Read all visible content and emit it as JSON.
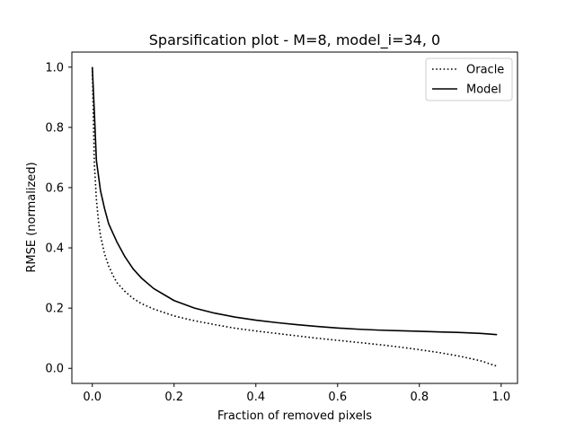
{
  "chart_data": {
    "type": "line",
    "title": "Sparsification plot - M=8, model_i=34, 0",
    "xlabel": "Fraction of removed pixels",
    "ylabel": "RMSE (normalized)",
    "xlim": [
      -0.05,
      1.04
    ],
    "ylim": [
      -0.05,
      1.05
    ],
    "xticks": [
      0.0,
      0.2,
      0.4,
      0.6,
      0.8,
      1.0
    ],
    "yticks": [
      0.0,
      0.2,
      0.4,
      0.6,
      0.8,
      1.0
    ],
    "xtick_labels": [
      "0.0",
      "0.2",
      "0.4",
      "0.6",
      "0.8",
      "1.0"
    ],
    "ytick_labels": [
      "0.0",
      "0.2",
      "0.4",
      "0.6",
      "0.8",
      "1.0"
    ],
    "grid": false,
    "legend_position": "top-right",
    "series": [
      {
        "name": "Oracle",
        "style": "dotted",
        "color": "#000000",
        "x": [
          0.0,
          0.005,
          0.01,
          0.015,
          0.02,
          0.03,
          0.04,
          0.05,
          0.06,
          0.08,
          0.1,
          0.12,
          0.15,
          0.2,
          0.25,
          0.3,
          0.35,
          0.4,
          0.45,
          0.5,
          0.55,
          0.6,
          0.65,
          0.7,
          0.75,
          0.8,
          0.85,
          0.9,
          0.95,
          0.99
        ],
        "y": [
          1.0,
          0.68,
          0.56,
          0.49,
          0.44,
          0.38,
          0.34,
          0.31,
          0.285,
          0.255,
          0.232,
          0.215,
          0.197,
          0.174,
          0.158,
          0.145,
          0.133,
          0.124,
          0.116,
          0.108,
          0.1,
          0.093,
          0.086,
          0.079,
          0.071,
          0.062,
          0.052,
          0.04,
          0.025,
          0.007
        ]
      },
      {
        "name": "Model",
        "style": "solid",
        "color": "#000000",
        "x": [
          0.0,
          0.005,
          0.01,
          0.015,
          0.02,
          0.03,
          0.04,
          0.05,
          0.06,
          0.08,
          0.1,
          0.12,
          0.15,
          0.2,
          0.25,
          0.3,
          0.35,
          0.4,
          0.45,
          0.5,
          0.55,
          0.6,
          0.65,
          0.7,
          0.75,
          0.8,
          0.85,
          0.9,
          0.95,
          0.99
        ],
        "y": [
          1.0,
          0.85,
          0.69,
          0.64,
          0.59,
          0.53,
          0.48,
          0.45,
          0.42,
          0.37,
          0.33,
          0.3,
          0.265,
          0.225,
          0.2,
          0.183,
          0.17,
          0.16,
          0.152,
          0.145,
          0.139,
          0.134,
          0.13,
          0.127,
          0.125,
          0.123,
          0.121,
          0.119,
          0.116,
          0.112
        ]
      }
    ]
  }
}
